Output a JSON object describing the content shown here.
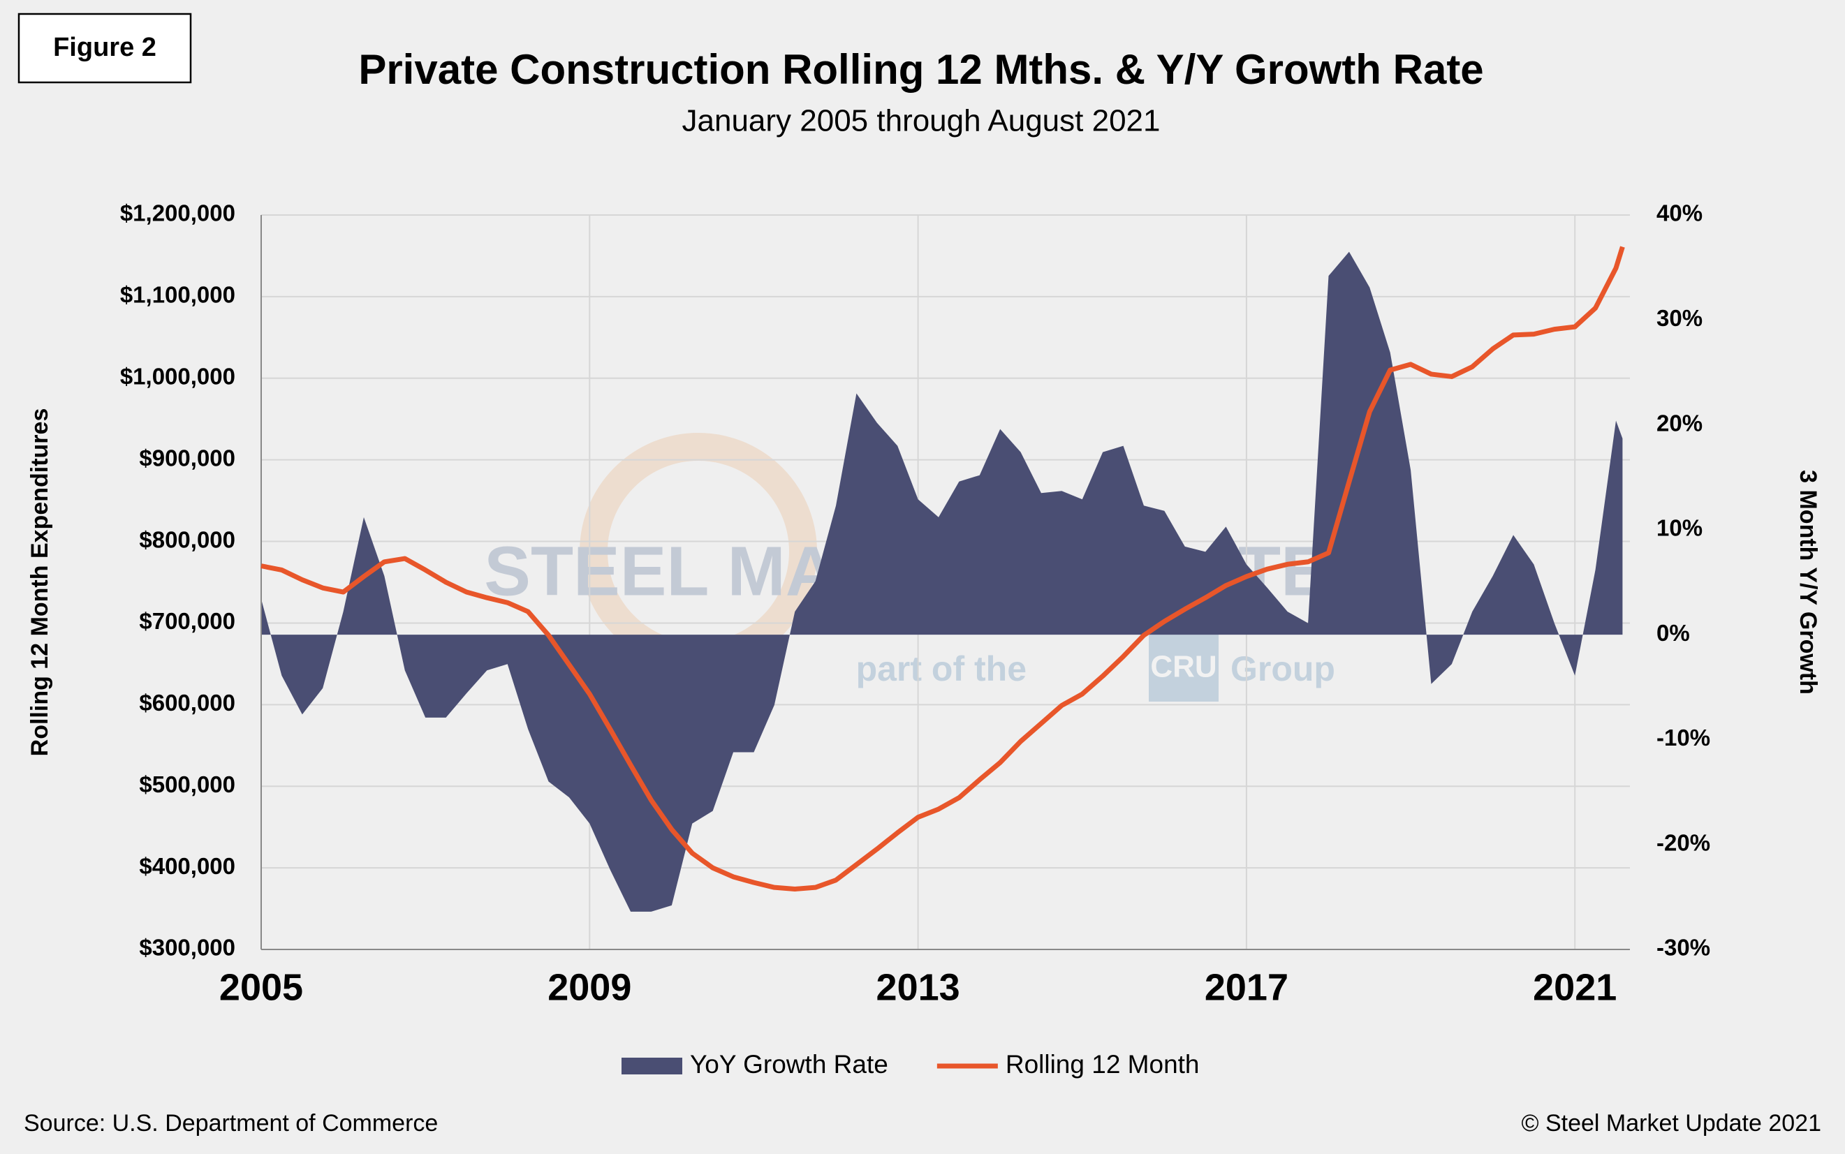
{
  "chart_data": {
    "type": "combo",
    "figure_label": "Figure 2",
    "title": "Private Construction Rolling 12 Mths. & Y/Y Growth Rate",
    "subtitle": "January 2005 through August 2021",
    "y_label": "Rolling 12 Month Expenditures",
    "y2_label": "3 Month Y/Y Growth",
    "source": "Source: U.S. Department of Commerce",
    "copyright": "© Steel Market Update 2021",
    "watermark": {
      "brand": "STEEL MARKET UPDATE",
      "part_of": "part of the",
      "cru": "CRU",
      "group": "Group"
    },
    "x": [
      2005,
      2005.25,
      2005.5,
      2005.75,
      2006,
      2006.25,
      2006.5,
      2006.75,
      2007,
      2007.25,
      2007.5,
      2007.75,
      2008,
      2008.25,
      2008.5,
      2008.75,
      2009,
      2009.25,
      2009.5,
      2009.75,
      2010,
      2010.25,
      2010.5,
      2010.75,
      2011,
      2011.25,
      2011.5,
      2011.75,
      2012,
      2012.25,
      2012.5,
      2012.75,
      2013,
      2013.25,
      2013.5,
      2013.75,
      2014,
      2014.25,
      2014.5,
      2014.75,
      2015,
      2015.25,
      2015.5,
      2015.75,
      2016,
      2016.25,
      2016.5,
      2016.75,
      2017,
      2017.25,
      2017.5,
      2017.75,
      2018,
      2018.25,
      2018.5,
      2018.75,
      2019,
      2019.25,
      2019.5,
      2019.75,
      2020,
      2020.25,
      2020.5,
      2020.75,
      2021,
      2021.25,
      2021.5,
      2021.58
    ],
    "xlim": [
      2005,
      2021.67
    ],
    "xticks": [
      2005,
      2009,
      2013,
      2017,
      2021
    ],
    "ylim": [
      300000,
      1200000
    ],
    "yticks": [
      {
        "value": 300000,
        "label": "$300,000"
      },
      {
        "value": 400000,
        "label": "$400,000"
      },
      {
        "value": 500000,
        "label": "$500,000"
      },
      {
        "value": 600000,
        "label": "$600,000"
      },
      {
        "value": 700000,
        "label": "$700,000"
      },
      {
        "value": 800000,
        "label": "$800,000"
      },
      {
        "value": 900000,
        "label": "$900,000"
      },
      {
        "value": 1000000,
        "label": "$1,000,000"
      },
      {
        "value": 1100000,
        "label": "$1,100,000"
      },
      {
        "value": 1200000,
        "label": "$1,200,000"
      }
    ],
    "y2lim": [
      -30,
      40
    ],
    "y2ticks": [
      {
        "value": -30,
        "label": "-30%"
      },
      {
        "value": -20,
        "label": "-20%"
      },
      {
        "value": -10,
        "label": "-10%"
      },
      {
        "value": 0,
        "label": "0%"
      },
      {
        "value": 10,
        "label": "10%"
      },
      {
        "value": 20,
        "label": "20%"
      },
      {
        "value": 30,
        "label": "30%"
      },
      {
        "value": 40,
        "label": "40%"
      }
    ],
    "grid": true,
    "legend": "bottom",
    "series": [
      {
        "name": "YoY Growth Rate",
        "type": "area",
        "axis": "y2",
        "color": "#4a4e73",
        "values": [
          3.4,
          -3.9,
          -7.6,
          -5.1,
          2.2,
          11.2,
          5.6,
          -3.4,
          -7.9,
          -7.9,
          -5.6,
          -3.4,
          -2.8,
          -9.0,
          -14.0,
          -15.5,
          -18.0,
          -22.4,
          -26.4,
          -26.4,
          -25.8,
          -18.0,
          -16.8,
          -11.2,
          -11.2,
          -6.7,
          2.2,
          5.1,
          12.3,
          23.0,
          20.2,
          18.0,
          12.9,
          11.2,
          14.6,
          15.2,
          19.6,
          17.4,
          13.5,
          13.7,
          12.9,
          17.4,
          18.0,
          12.3,
          11.8,
          8.4,
          7.9,
          10.3,
          6.7,
          4.5,
          2.2,
          1.1,
          34.2,
          36.5,
          33.1,
          26.9,
          15.7,
          -4.7,
          -2.8,
          2.2,
          5.6,
          9.5,
          6.7,
          1.1,
          -3.9,
          6.2,
          20.4,
          18.7
        ]
      },
      {
        "name": "Rolling 12 Month",
        "type": "line",
        "color": "#e8562a",
        "values": [
          770000,
          765000,
          753000,
          743000,
          738000,
          757000,
          775000,
          779000,
          765000,
          750000,
          738000,
          731000,
          725000,
          714000,
          685000,
          649000,
          613000,
          570000,
          526000,
          483000,
          447000,
          418000,
          400000,
          389000,
          382000,
          376000,
          374000,
          376000,
          385000,
          404000,
          423000,
          443000,
          462000,
          472000,
          486000,
          508000,
          529000,
          555000,
          577000,
          599000,
          613000,
          635000,
          659000,
          685000,
          702000,
          717000,
          731000,
          746000,
          757000,
          766000,
          772000,
          775000,
          786000,
          873000,
          959000,
          1010000,
          1017000,
          1005000,
          1002000,
          1014000,
          1036000,
          1053000,
          1054000,
          1060000,
          1063000,
          1086000,
          1135000,
          1161000
        ]
      }
    ]
  }
}
